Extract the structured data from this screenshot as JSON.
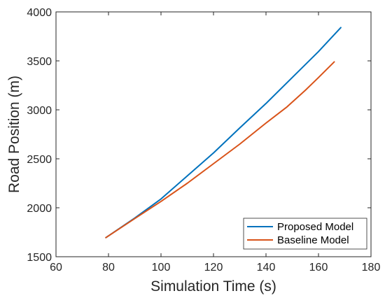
{
  "chart_data": {
    "type": "line",
    "xlabel": "Simulation Time (s)",
    "ylabel": "Road Position (m)",
    "xlim": [
      60,
      180
    ],
    "ylim": [
      1500,
      4000
    ],
    "xticks": [
      60,
      80,
      100,
      120,
      140,
      160,
      180
    ],
    "yticks": [
      1500,
      2000,
      2500,
      3000,
      3500,
      4000
    ],
    "xtick_labels": [
      "60",
      "80",
      "100",
      "120",
      "140",
      "160",
      "180"
    ],
    "ytick_labels": [
      "1500",
      "2000",
      "2500",
      "3000",
      "3500",
      "4000"
    ],
    "grid": false,
    "legend_position": "bottom-right",
    "series": [
      {
        "name": "Proposed Model",
        "color": "#0072BD",
        "x": [
          79,
          90,
          100,
          110,
          120,
          130,
          140,
          150,
          160,
          168.5
        ],
        "y": [
          1695,
          1895,
          2090,
          2325,
          2560,
          2815,
          3065,
          3330,
          3595,
          3840
        ]
      },
      {
        "name": "Baseline Model",
        "color": "#D95319",
        "x": [
          79,
          90,
          100,
          110,
          120,
          130,
          140,
          148,
          155,
          160,
          166
        ],
        "y": [
          1695,
          1890,
          2065,
          2250,
          2450,
          2650,
          2865,
          3030,
          3200,
          3330,
          3490
        ]
      }
    ]
  }
}
